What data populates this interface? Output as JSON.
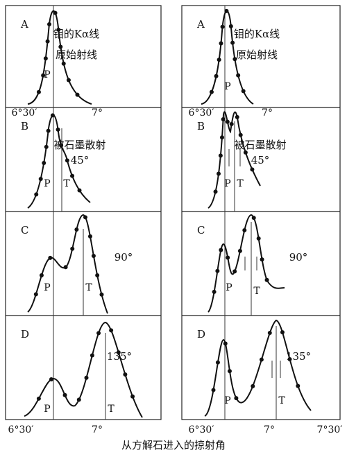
{
  "columns": [
    {
      "panels": [
        {
          "label": "A",
          "title": [
            "钼的Kα线",
            "原始射线"
          ],
          "peaks": [
            "P"
          ]
        },
        {
          "label": "B",
          "title": [
            "被石墨散射",
            "45°"
          ],
          "peaks": [
            "P",
            "T"
          ]
        },
        {
          "label": "C",
          "title": [
            "90°"
          ],
          "peaks": [
            "P",
            "T"
          ]
        },
        {
          "label": "D",
          "title": [
            "135°"
          ],
          "peaks": [
            "P",
            "T"
          ]
        }
      ],
      "top_axis": [
        "6°30′",
        "7°"
      ],
      "bottom_axis": [
        "6°30′",
        "7°"
      ]
    },
    {
      "panels": [
        {
          "label": "A",
          "title": [
            "钼的Kα线",
            "原始射线"
          ],
          "peaks": [
            "P"
          ]
        },
        {
          "label": "B",
          "title": [
            "被石墨散射",
            "45°"
          ],
          "peaks": [
            "P",
            "T"
          ]
        },
        {
          "label": "C",
          "title": [
            "90°"
          ],
          "peaks": [
            "P",
            "T"
          ]
        },
        {
          "label": "D",
          "title": [
            "135°"
          ],
          "peaks": [
            "P",
            "T"
          ]
        }
      ],
      "top_axis": [
        "6°30′",
        "7°"
      ],
      "bottom_axis": [
        "6°30′",
        "7°",
        "7°30′"
      ]
    }
  ],
  "caption": "从方解石进入的掠射角"
}
